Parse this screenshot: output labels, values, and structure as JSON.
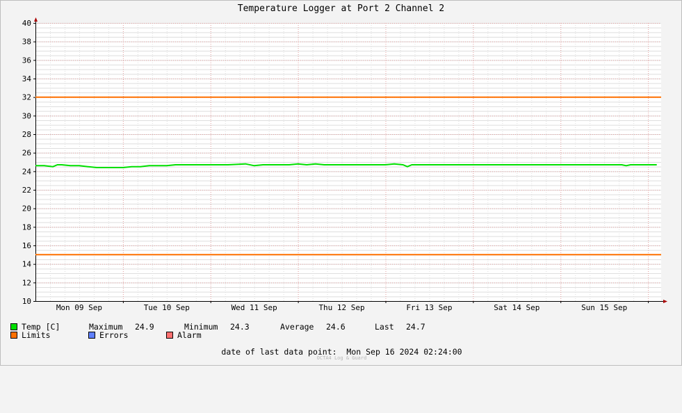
{
  "page": {
    "title": "Temperature Logger at Port 2 Channel 2",
    "last_data_label": "date of last data point:",
    "last_data_value": "Mon Sep 16 2024 02:24:00",
    "footer": "OCTA4 Log & Guard"
  },
  "legend": {
    "temp": {
      "label": "Temp [C]",
      "color": "#00e000"
    },
    "limits": {
      "label": "Limits",
      "color": "#ff7000"
    },
    "errors": {
      "label": "Errors",
      "color": "#6080ff"
    },
    "alarm": {
      "label": "Alarm",
      "color": "#ff7070"
    },
    "stats": {
      "max_label": "Maximum",
      "max_value": "24.9",
      "min_label": "Minimum",
      "min_value": "24.3",
      "avg_label": "Average",
      "avg_value": "24.6",
      "last_label": "Last",
      "last_value": "24.7"
    }
  },
  "chart_data": {
    "type": "line",
    "title": "Temperature Logger at Port 2 Channel 2",
    "xlabel": "",
    "ylabel": "",
    "ylim": [
      10,
      40
    ],
    "xlim": [
      0,
      7.15
    ],
    "x_unit": "days from Mon 09 Sep 00:00",
    "yticks": [
      "10",
      "12",
      "14",
      "16",
      "18",
      "20",
      "22",
      "24",
      "26",
      "28",
      "30",
      "32",
      "34",
      "36",
      "38",
      "40"
    ],
    "xticks": [
      "Mon 09 Sep",
      "Tue 10 Sep",
      "Wed 11 Sep",
      "Thu 12 Sep",
      "Fri 13 Sep",
      "Sat 14 Sep",
      "Sun 15 Sep"
    ],
    "grid": true,
    "series": [
      {
        "name": "Temp [C]",
        "color": "#00e000",
        "x": [
          0.0,
          0.1,
          0.2,
          0.25,
          0.3,
          0.4,
          0.5,
          0.6,
          0.7,
          0.8,
          0.9,
          1.0,
          1.1,
          1.2,
          1.3,
          1.4,
          1.5,
          1.6,
          1.7,
          1.8,
          1.9,
          2.0,
          2.2,
          2.4,
          2.5,
          2.6,
          2.7,
          2.8,
          2.9,
          3.0,
          3.1,
          3.2,
          3.3,
          3.4,
          3.5,
          3.6,
          3.7,
          3.8,
          4.0,
          4.1,
          4.2,
          4.25,
          4.3,
          4.4,
          4.5,
          4.6,
          4.8,
          5.0,
          5.2,
          5.4,
          5.6,
          5.8,
          6.0,
          6.2,
          6.4,
          6.6,
          6.7,
          6.75,
          6.8,
          7.0,
          7.1
        ],
        "y": [
          24.6,
          24.6,
          24.5,
          24.7,
          24.7,
          24.6,
          24.6,
          24.5,
          24.4,
          24.4,
          24.4,
          24.4,
          24.5,
          24.5,
          24.6,
          24.6,
          24.6,
          24.7,
          24.7,
          24.7,
          24.7,
          24.7,
          24.7,
          24.8,
          24.6,
          24.7,
          24.7,
          24.7,
          24.7,
          24.8,
          24.7,
          24.8,
          24.7,
          24.7,
          24.7,
          24.7,
          24.7,
          24.7,
          24.7,
          24.8,
          24.7,
          24.5,
          24.7,
          24.7,
          24.7,
          24.7,
          24.7,
          24.7,
          24.7,
          24.7,
          24.7,
          24.7,
          24.7,
          24.7,
          24.7,
          24.7,
          24.7,
          24.6,
          24.7,
          24.7,
          24.7
        ]
      },
      {
        "name": "Limits",
        "color": "#ff7000",
        "x": [
          0,
          7.15
        ],
        "y": [
          32,
          32
        ]
      },
      {
        "name": "Limits",
        "color": "#ff7000",
        "x": [
          0,
          7.15
        ],
        "y": [
          15,
          15
        ]
      }
    ]
  }
}
